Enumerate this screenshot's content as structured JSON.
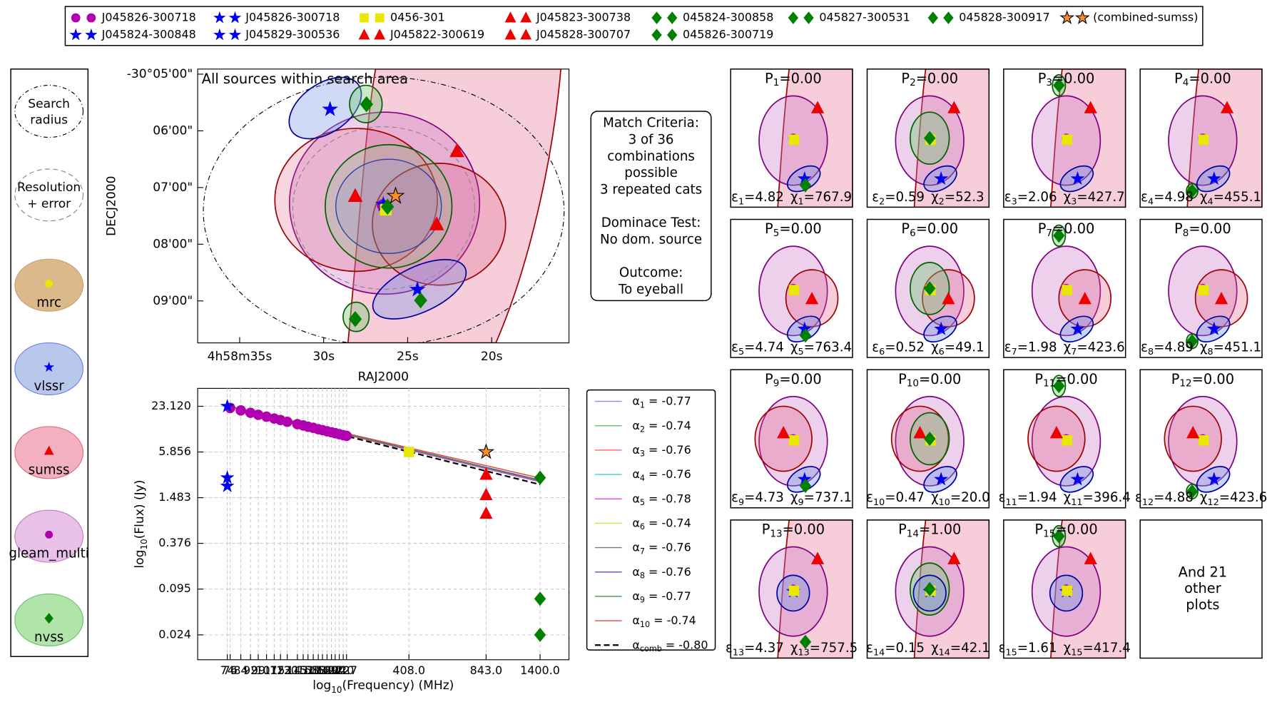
{
  "legend_position": "top",
  "chart_data": [
    {
      "type": "scatter",
      "annotation": "All sources within search area",
      "xlabel": "RAJ2000",
      "ylabel": "DECJ2000",
      "xlim": [
        37.5,
        15.4
      ],
      "ylim": [
        9.74,
        4.91
      ],
      "xticks": [
        {
          "value": 35,
          "label": "4h58m35s"
        },
        {
          "value": 30,
          "label": "30s"
        },
        {
          "value": 25,
          "label": "25s"
        },
        {
          "value": 20,
          "label": "20s"
        }
      ],
      "yticks": [
        {
          "value": 5,
          "label": "-30°05'00\""
        },
        {
          "value": 6,
          "label": "06'00\""
        },
        {
          "value": 7,
          "label": "07'00\""
        },
        {
          "value": 8,
          "label": "08'00\""
        },
        {
          "value": 9,
          "label": "09'00\""
        }
      ],
      "series": [
        {
          "name": "J045826-300718",
          "marker": "circle",
          "color": "#b000b0",
          "x": [
            26.49
          ],
          "values": [
            7.31
          ]
        },
        {
          "name": "J045824-300848",
          "marker": "star",
          "color": "#0000ee",
          "x": [
            24.42
          ],
          "values": [
            8.8
          ]
        },
        {
          "name": "J045826-300718",
          "marker": "star",
          "color": "#0000ee",
          "x": [
            26.45
          ],
          "values": [
            7.3
          ]
        },
        {
          "name": "J045829-300536",
          "marker": "star",
          "color": "#0000ee",
          "x": [
            29.62
          ],
          "values": [
            5.62
          ]
        },
        {
          "name": "0456-301",
          "marker": "square",
          "color": "#e8e800",
          "x": [
            26.3
          ],
          "values": [
            7.39
          ]
        },
        {
          "name": "J045822-300619",
          "marker": "triangle",
          "color": "#ee0000",
          "x": [
            22.07
          ],
          "values": [
            6.36
          ]
        },
        {
          "name": "J045823-300738",
          "marker": "triangle",
          "color": "#ee0000",
          "x": [
            23.27
          ],
          "values": [
            7.65
          ]
        },
        {
          "name": "J045828-300707",
          "marker": "triangle",
          "color": "#ee0000",
          "x": [
            28.12
          ],
          "values": [
            7.15
          ]
        },
        {
          "name": "045824-300858",
          "marker": "diamond",
          "color": "#008000",
          "x": [
            24.23
          ],
          "values": [
            8.99
          ]
        },
        {
          "name": "045826-300719",
          "marker": "diamond",
          "color": "#008000",
          "x": [
            26.2
          ],
          "values": [
            7.34
          ]
        },
        {
          "name": "045827-300531",
          "marker": "diamond",
          "color": "#008000",
          "x": [
            27.45
          ],
          "values": [
            5.53
          ]
        },
        {
          "name": "045828-300917",
          "marker": "diamond",
          "color": "#008000",
          "x": [
            28.12
          ],
          "values": [
            9.32
          ]
        },
        {
          "name": "(combined-sumss)",
          "marker": "star",
          "color": "#ff8c2a",
          "x": [
            25.72
          ],
          "values": [
            7.15
          ]
        }
      ]
    },
    {
      "type": "scatter",
      "xlabel": [
        "log",
        "10",
        "(Frequency) (MHz)"
      ],
      "ylabel": [
        "log",
        "10",
        "(Flux) (Jy)"
      ],
      "log_x": true,
      "log_y": true,
      "grid": true,
      "xlim": [
        56,
        1837
      ],
      "ylim": [
        0.01136,
        39.6
      ],
      "xticks": [
        74,
        76,
        84,
        92,
        99,
        107,
        115,
        122,
        130,
        143,
        151,
        158,
        166,
        174,
        181,
        189,
        197,
        204,
        212,
        220,
        227,
        {
          "value": 408,
          "label": "408.0"
        },
        {
          "value": 843,
          "label": "843.0"
        },
        {
          "value": 1400,
          "label": "1400.0"
        }
      ],
      "yticks": [
        0.024,
        0.095,
        0.376,
        1.483,
        5.856,
        {
          "value": 23.12,
          "label": "23.120"
        }
      ],
      "series": [
        {
          "marker": "circle",
          "color": "#b000b0",
          "x": [
            76,
            84,
            92,
            99,
            107,
            115,
            122,
            130,
            143,
            151,
            158,
            166,
            174,
            181,
            189,
            197,
            204,
            212,
            220,
            227
          ],
          "values": [
            22.0,
            20.4,
            19.0,
            17.9,
            16.9,
            16.0,
            15.3,
            14.5,
            13.5,
            13.0,
            12.5,
            12.1,
            11.6,
            11.3,
            10.9,
            10.6,
            10.3,
            10.0,
            9.7,
            9.5
          ]
        },
        {
          "marker": "star",
          "color": "#0000ee",
          "x": [
            74,
            74,
            74
          ],
          "values": [
            23.1,
            2.7,
            2.1
          ]
        },
        {
          "marker": "square",
          "color": "#e8e800",
          "x": [
            408
          ],
          "values": [
            5.86
          ]
        },
        {
          "marker": "triangle",
          "color": "#ee0000",
          "x": [
            843,
            843,
            843
          ],
          "values": [
            2.97,
            1.61,
            0.92
          ]
        },
        {
          "marker": "diamond",
          "color": "#008000",
          "x": [
            1400,
            1400,
            1400
          ],
          "values": [
            2.7,
            0.071,
            0.024
          ]
        },
        {
          "marker": "star",
          "color": "#ff8c2a",
          "x": [
            843
          ],
          "values": [
            5.86
          ]
        }
      ],
      "fits": [
        {
          "label": [
            "α",
            "1",
            " = -0.77"
          ],
          "color": "#8888ff",
          "line_style": "solid",
          "x": [
            76,
            1400
          ],
          "values": [
            23,
            2.45
          ]
        },
        {
          "label": [
            "α",
            "2",
            " = -0.74"
          ],
          "color": "#66bb66",
          "line_style": "solid",
          "x": [
            76,
            1400
          ],
          "values": [
            23,
            2.67
          ]
        },
        {
          "label": [
            "α",
            "3",
            " = -0.76"
          ],
          "color": "#ff6666",
          "line_style": "solid",
          "x": [
            76,
            1400
          ],
          "values": [
            23,
            2.51
          ]
        },
        {
          "label": [
            "α",
            "4",
            " = -0.76"
          ],
          "color": "#44cccc",
          "line_style": "solid",
          "x": [
            76,
            1400
          ],
          "values": [
            23,
            2.51
          ]
        },
        {
          "label": [
            "α",
            "5",
            " = -0.78"
          ],
          "color": "#dd44dd",
          "line_style": "solid",
          "x": [
            76,
            1400
          ],
          "values": [
            23,
            2.38
          ]
        },
        {
          "label": [
            "α",
            "6",
            " = -0.74"
          ],
          "color": "#dddd44",
          "line_style": "solid",
          "x": [
            76,
            1400
          ],
          "values": [
            23,
            2.67
          ]
        },
        {
          "label": [
            "α",
            "7",
            " = -0.76"
          ],
          "color": "#777777",
          "line_style": "solid",
          "x": [
            76,
            1400
          ],
          "values": [
            23,
            2.51
          ]
        },
        {
          "label": [
            "α",
            "8",
            " = -0.76"
          ],
          "color": "#6644cc",
          "line_style": "solid",
          "x": [
            76,
            1400
          ],
          "values": [
            23,
            2.51
          ]
        },
        {
          "label": [
            "α",
            "9",
            " = -0.77"
          ],
          "color": "#449944",
          "line_style": "solid",
          "x": [
            76,
            1400
          ],
          "values": [
            23,
            2.45
          ]
        },
        {
          "label": [
            "α",
            "10",
            " = -0.74"
          ],
          "color": "#ee4444",
          "line_style": "solid",
          "x": [
            76,
            1400
          ],
          "values": [
            23,
            2.67
          ]
        },
        {
          "label": [
            "α",
            "comb",
            " = -0.80"
          ],
          "color": "#000000",
          "line_style": "dashed",
          "x": [
            74,
            1400
          ],
          "values": [
            23.1,
            2.2
          ]
        }
      ]
    }
  ],
  "catalog_key": [
    {
      "label": [
        "Search",
        "radius"
      ],
      "style": "dotted"
    },
    {
      "label": [
        "Resolution",
        "+ error"
      ],
      "style": "dashed"
    },
    {
      "label": [
        "mrc"
      ],
      "fill": "#dcb98a",
      "edge": "#c8a070",
      "marker": "circle",
      "color": "#e8e800"
    },
    {
      "label": [
        "vlssr"
      ],
      "fill": "#b8c8ec",
      "edge": "#7080e0",
      "marker": "star",
      "color": "#0000ee"
    },
    {
      "label": [
        "sumss"
      ],
      "fill": "#f2b0c0",
      "edge": "#e07080",
      "marker": "triangle",
      "color": "#ee0000"
    },
    {
      "label": [
        "gleam_multi"
      ],
      "fill": "#e8c0e8",
      "edge": "#c080c0",
      "marker": "circle",
      "color": "#b000b0"
    },
    {
      "label": [
        "nvss"
      ],
      "fill": "#b0e4a8",
      "edge": "#70c070",
      "marker": "diamond",
      "color": "#008000"
    }
  ],
  "match_criteria": [
    [
      "Match Criteria:",
      "3 of 36",
      "combinations",
      "possible",
      "3 repeated cats"
    ],
    [
      "Dominace Test:",
      "No dom. source"
    ],
    [
      "Outcome:",
      "To eyeball"
    ]
  ],
  "combinations": [
    {
      "p": [
        "P",
        "1",
        "=0.00"
      ],
      "fit": [
        "ε",
        "1",
        "=4.82",
        "χ",
        "1",
        "=767.9"
      ]
    },
    {
      "p": [
        "P",
        "2",
        "=0.00"
      ],
      "fit": [
        "ε",
        "2",
        "=0.59",
        "χ",
        "2",
        "=52.3"
      ]
    },
    {
      "p": [
        "P",
        "3",
        "=0.00"
      ],
      "fit": [
        "ε",
        "3",
        "=2.06",
        "χ",
        "3",
        "=427.7"
      ]
    },
    {
      "p": [
        "P",
        "4",
        "=0.00"
      ],
      "fit": [
        "ε",
        "4",
        "=4.98",
        "χ",
        "4",
        "=455.1"
      ]
    },
    {
      "p": [
        "P",
        "5",
        "=0.00"
      ],
      "fit": [
        "ε",
        "5",
        "=4.74",
        "χ",
        "5",
        "=763.4"
      ]
    },
    {
      "p": [
        "P",
        "6",
        "=0.00"
      ],
      "fit": [
        "ε",
        "6",
        "=0.52",
        "χ",
        "6",
        "=49.1"
      ]
    },
    {
      "p": [
        "P",
        "7",
        "=0.00"
      ],
      "fit": [
        "ε",
        "7",
        "=1.98",
        "χ",
        "7",
        "=423.6"
      ]
    },
    {
      "p": [
        "P",
        "8",
        "=0.00"
      ],
      "fit": [
        "ε",
        "8",
        "=4.89",
        "χ",
        "8",
        "=451.1"
      ]
    },
    {
      "p": [
        "P",
        "9",
        "=0.00"
      ],
      "fit": [
        "ε",
        "9",
        "=4.73",
        "χ",
        "9",
        "=737.1"
      ]
    },
    {
      "p": [
        "P",
        "10",
        "=0.00"
      ],
      "fit": [
        "ε",
        "10",
        "=0.47",
        "χ",
        "10",
        "=20.0"
      ]
    },
    {
      "p": [
        "P",
        "11",
        "=0.00"
      ],
      "fit": [
        "ε",
        "11",
        "=1.94",
        "χ",
        "11",
        "=396.4"
      ]
    },
    {
      "p": [
        "P",
        "12",
        "=0.00"
      ],
      "fit": [
        "ε",
        "12",
        "=4.88",
        "χ",
        "12",
        "=423.6"
      ]
    },
    {
      "p": [
        "P",
        "13",
        "=0.00"
      ],
      "fit": [
        "ε",
        "13",
        "=4.37",
        "χ",
        "13",
        "=757.5"
      ]
    },
    {
      "p": [
        "P",
        "14",
        "=1.00"
      ],
      "fit": [
        "ε",
        "14",
        "=0.15",
        "χ",
        "14",
        "=42.1"
      ]
    },
    {
      "p": [
        "P",
        "15",
        "=0.00"
      ],
      "fit": [
        "ε",
        "15",
        "=1.61",
        "χ",
        "15",
        "=417.4"
      ]
    }
  ],
  "more_plots": [
    "And 21",
    "other",
    "plots"
  ]
}
